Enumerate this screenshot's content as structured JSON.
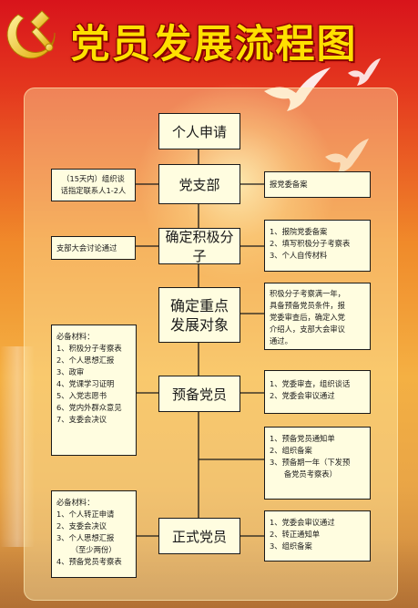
{
  "title": "党员发展流程图",
  "main_steps": {
    "s1": "个人申请",
    "s2": "党支部",
    "s3": "确定积极分子",
    "s4_line1": "确定重点",
    "s4_line2": "发展对象",
    "s5": "预备党员",
    "s6": "正式党员"
  },
  "left_notes": {
    "n1_line1": "（15天内）组织谈",
    "n1_line2": "话指定联系人1-2人",
    "n2": "支部大会讨论通过",
    "n3_title": "必备材料：",
    "n3_items": [
      "1、积极分子考察表",
      "2、个人思想汇报",
      "3、政审",
      "4、党课学习证明",
      "5、入党志愿书",
      "6、党内外群众意见",
      "7、支委会决议"
    ],
    "n4_title": "必备材料：",
    "n4_items": [
      "1、个人转正申请",
      "2、支委会决议",
      "3、个人思想汇报",
      "      （至少两份）",
      "4、预备党员考察表"
    ]
  },
  "right_notes": {
    "r1": "报党委备案",
    "r2_items": [
      "1、报院党委备案",
      "2、填写积极分子考察表",
      "3、个人自传材料"
    ],
    "r3_lines": [
      "积极分子考察满一年，",
      "具备预备党员条件，报",
      "党委审查后，确定入党",
      "介绍人，支部大会审议",
      "通过。"
    ],
    "r4_items": [
      "1、党委审查，组织谈话",
      "2、党委会审议通过"
    ],
    "r5_items": [
      "1、预备党员通知单",
      "2、组织备案",
      "3、预备期一年（下发预",
      "      备党员考察表）"
    ],
    "r6_items": [
      "1、党委会审议通过",
      "2、转正通知单",
      "3、组织备案"
    ]
  },
  "colors": {
    "title": "#ffe000",
    "box_fill": "#fffde0",
    "line": "#1a1a1a"
  }
}
